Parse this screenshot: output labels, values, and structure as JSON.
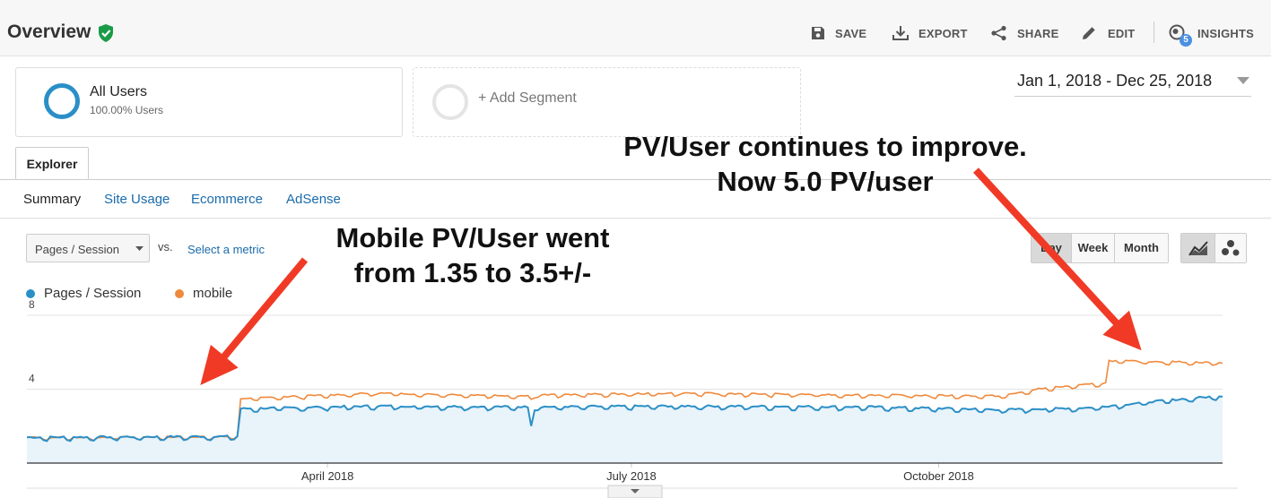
{
  "header": {
    "title": "Overview",
    "actions": [
      {
        "label": "SAVE",
        "icon": "save-icon"
      },
      {
        "label": "EXPORT",
        "icon": "download-icon"
      },
      {
        "label": "SHARE",
        "icon": "share-icon"
      },
      {
        "label": "EDIT",
        "icon": "pencil-icon"
      },
      {
        "label": "INSIGHTS",
        "icon": "insights-icon",
        "badge": "5"
      }
    ]
  },
  "segments": {
    "primary": {
      "title": "All Users",
      "subtitle": "100.00% Users"
    },
    "add_label": "+ Add Segment"
  },
  "date_range": "Jan 1, 2018 - Dec 25, 2018",
  "tabs": {
    "explorer": "Explorer"
  },
  "subnav": [
    "Summary",
    "Site Usage",
    "Ecommerce",
    "AdSense"
  ],
  "controls": {
    "metric_select": "Pages / Session",
    "vs": "vs.",
    "select_metric": "Select a metric",
    "periods": [
      "Day",
      "Week",
      "Month"
    ]
  },
  "annotations": {
    "left": [
      "Mobile PV/User went",
      "from 1.35 to 3.5+/-"
    ],
    "right": [
      "PV/User continues to improve.",
      "Now 5.0 PV/user"
    ]
  },
  "colors": {
    "series1": "#2b8fc7",
    "series2": "#ef8a3d",
    "arrow": "#f03a26",
    "fill": "#e8f3fa",
    "accent": "#1a6bab",
    "shield": "#1a9b48"
  },
  "chart_data": {
    "type": "line",
    "title": "",
    "xlabel": "",
    "ylabel": "",
    "ylim": [
      0,
      8
    ],
    "yticks": [
      4,
      8
    ],
    "x_tick_labels": [
      "April 2018",
      "July 2018",
      "October 2018"
    ],
    "x_range": [
      "2018-01-01",
      "2018-12-25"
    ],
    "grid": true,
    "legend_position": "top-left",
    "series": [
      {
        "name": "Pages / Session",
        "points": [
          [
            "2018-01-01",
            1.35
          ],
          [
            "2018-03-05",
            1.4
          ],
          [
            "2018-03-06",
            2.9
          ],
          [
            "2018-04-15",
            3.05
          ],
          [
            "2018-05-31",
            3.0
          ],
          [
            "2018-06-01",
            2.0
          ],
          [
            "2018-06-02",
            3.0
          ],
          [
            "2018-07-15",
            3.05
          ],
          [
            "2018-09-10",
            3.0
          ],
          [
            "2018-10-20",
            2.85
          ],
          [
            "2018-11-15",
            2.95
          ],
          [
            "2018-12-05",
            3.3
          ],
          [
            "2018-12-25",
            3.6
          ]
        ]
      },
      {
        "name": "mobile",
        "points": [
          [
            "2018-01-01",
            1.35
          ],
          [
            "2018-03-05",
            1.4
          ],
          [
            "2018-03-06",
            3.45
          ],
          [
            "2018-04-15",
            3.75
          ],
          [
            "2018-05-31",
            3.6
          ],
          [
            "2018-06-01",
            3.45
          ],
          [
            "2018-06-02",
            3.65
          ],
          [
            "2018-07-15",
            3.75
          ],
          [
            "2018-09-10",
            3.65
          ],
          [
            "2018-10-20",
            3.6
          ],
          [
            "2018-11-01",
            4.0
          ],
          [
            "2018-11-20",
            4.3
          ],
          [
            "2018-11-21",
            5.5
          ],
          [
            "2018-12-25",
            5.4
          ]
        ]
      }
    ]
  }
}
